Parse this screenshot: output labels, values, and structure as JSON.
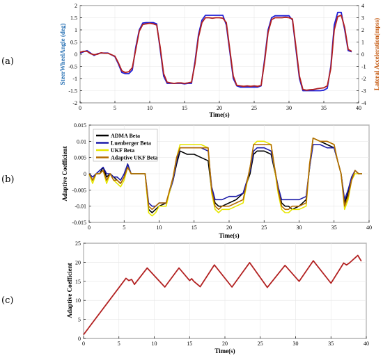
{
  "panel_labels": [
    "(a)",
    "(b)",
    "(c)"
  ],
  "chart_data": [
    {
      "type": "line",
      "xlabel": "Time(s)",
      "ylabel": "SteerWheelAngle (deg)",
      "y2label": "Lateral Acceleration(mpss)",
      "xlim": [
        0,
        40
      ],
      "ylim": [
        -2,
        2
      ],
      "y2lim": [
        -4,
        4
      ],
      "xticks": [
        0,
        5,
        10,
        15,
        20,
        25,
        30,
        35,
        40
      ],
      "yticks": [
        -2,
        -1.5,
        -1,
        -0.5,
        0,
        0.5,
        1,
        1.5,
        2
      ],
      "y2ticks": [
        -4,
        -3,
        -2,
        -1,
        0,
        1,
        2,
        3,
        4
      ],
      "colors": {
        "left_axis": "#2e75b6",
        "right_axis": "#c55a11"
      },
      "series": [
        {
          "color": "#1f1fd6",
          "axis": "left",
          "x": [
            0,
            0.5,
            1,
            1.5,
            2,
            2.5,
            3,
            3.5,
            4,
            5,
            5.5,
            6,
            6.5,
            7,
            7.5,
            8,
            8.5,
            9,
            9.5,
            10,
            10.5,
            11,
            11.5,
            12,
            12.5,
            13,
            13.5,
            14,
            14.5,
            15,
            15.5,
            16,
            16.5,
            17,
            17.5,
            18,
            18.5,
            19,
            19.5,
            20,
            20.5,
            21,
            21.5,
            22,
            22.5,
            23,
            23.5,
            24,
            24.5,
            25,
            25.5,
            26,
            26.5,
            27,
            27.5,
            28,
            28.5,
            29,
            29.5,
            30,
            30.5,
            31,
            31.5,
            32,
            32.5,
            33,
            33.5,
            34,
            34.5,
            35,
            35.5,
            36,
            36.5,
            37,
            37.5,
            38,
            38.5,
            39
          ],
          "y": [
            0.05,
            0.1,
            0.15,
            0.05,
            -0.05,
            0.02,
            0.05,
            0.05,
            0.05,
            -0.1,
            -0.4,
            -0.75,
            -0.8,
            -0.8,
            -0.65,
            0.3,
            1.0,
            1.28,
            1.3,
            1.3,
            1.3,
            1.25,
            0.2,
            -0.9,
            -1.2,
            -1.2,
            -1.2,
            -1.2,
            -1.2,
            -1.22,
            -1.2,
            -1.2,
            -0.3,
            0.8,
            1.4,
            1.6,
            1.6,
            1.6,
            1.6,
            1.6,
            1.6,
            1.2,
            0.1,
            -1.0,
            -1.3,
            -1.35,
            -1.35,
            -1.35,
            -1.35,
            -1.35,
            -1.35,
            -1.3,
            -0.2,
            1.0,
            1.5,
            1.58,
            1.58,
            1.58,
            1.58,
            1.58,
            1.4,
            0.2,
            -1.0,
            -1.5,
            -1.5,
            -1.5,
            -1.5,
            -1.5,
            -1.5,
            -1.48,
            -1.4,
            -0.5,
            1.2,
            1.72,
            1.72,
            1.0,
            0.15,
            0.1
          ]
        },
        {
          "color": "#b22020",
          "axis": "left",
          "x": [
            0,
            0.5,
            1,
            1.5,
            2,
            2.5,
            3,
            3.5,
            4,
            5,
            5.5,
            6,
            6.5,
            7,
            7.5,
            8,
            8.5,
            9,
            9.5,
            10,
            10.5,
            11,
            11.5,
            12,
            12.5,
            13,
            13.5,
            14,
            14.5,
            15,
            15.5,
            16,
            16.5,
            17,
            17.5,
            18,
            18.5,
            19,
            19.5,
            20,
            20.5,
            21,
            21.5,
            22,
            22.5,
            23,
            23.5,
            24,
            24.5,
            25,
            25.5,
            26,
            26.5,
            27,
            27.5,
            28,
            28.5,
            29,
            29.5,
            30,
            30.5,
            31,
            31.5,
            32,
            32.5,
            33,
            33.5,
            34,
            34.5,
            35,
            35.5,
            36,
            36.5,
            37,
            37.5,
            38,
            38.5,
            39
          ],
          "y": [
            0.08,
            0.12,
            0.12,
            0.02,
            -0.02,
            0.0,
            0.06,
            0.04,
            0.04,
            -0.08,
            -0.35,
            -0.68,
            -0.75,
            -0.72,
            -0.55,
            0.2,
            0.95,
            1.22,
            1.25,
            1.27,
            1.25,
            1.2,
            0.3,
            -0.8,
            -1.15,
            -1.18,
            -1.2,
            -1.18,
            -1.18,
            -1.2,
            -1.18,
            -1.15,
            -0.4,
            0.7,
            1.3,
            1.5,
            1.5,
            1.48,
            1.5,
            1.5,
            1.48,
            1.3,
            0.2,
            -0.9,
            -1.28,
            -1.3,
            -1.32,
            -1.3,
            -1.32,
            -1.3,
            -1.32,
            -1.28,
            -0.3,
            0.9,
            1.42,
            1.5,
            1.5,
            1.5,
            1.52,
            1.5,
            1.45,
            0.3,
            -0.9,
            -1.45,
            -1.48,
            -1.46,
            -1.45,
            -1.42,
            -1.4,
            -1.38,
            -1.3,
            -0.6,
            1.0,
            1.55,
            1.6,
            1.1,
            0.2,
            0.12
          ]
        }
      ]
    },
    {
      "type": "line",
      "xlabel": "Time(s)",
      "ylabel": "Adaptive Coefficient",
      "xlim": [
        0,
        40
      ],
      "ylim": [
        -0.015,
        0.015
      ],
      "xticks": [
        0,
        5,
        10,
        15,
        20,
        25,
        30,
        35,
        40
      ],
      "yticks": [
        -0.015,
        -0.01,
        -0.005,
        0,
        0.005,
        0.01,
        0.015
      ],
      "legend_position": "top-left",
      "series": [
        {
          "name": "ADMA Beta",
          "color": "#000000",
          "x": [
            0,
            0.5,
            1,
            1.5,
            2,
            2.5,
            3,
            3.5,
            4,
            4.5,
            5,
            5.5,
            6,
            7,
            8,
            8.5,
            9,
            9.5,
            10,
            11,
            12,
            12.5,
            13,
            14,
            15,
            16,
            17,
            17.5,
            18,
            18.5,
            19,
            20,
            21,
            22,
            23,
            23.5,
            24,
            25,
            26,
            27,
            27.5,
            28,
            28.5,
            29,
            30,
            31,
            31.5,
            32,
            33,
            34,
            35,
            35.5,
            36,
            36.5,
            37,
            37.5,
            38,
            38.5,
            39
          ],
          "y": [
            0.0,
            -0.002,
            0.0,
            0.0,
            0.002,
            -0.001,
            0.0,
            -0.001,
            -0.002,
            -0.003,
            -0.001,
            0.003,
            0.0,
            0.0,
            0.0,
            -0.011,
            -0.012,
            -0.011,
            -0.01,
            -0.009,
            -0.002,
            0.003,
            0.007,
            0.006,
            0.006,
            0.005,
            0.004,
            -0.005,
            -0.009,
            -0.01,
            -0.01,
            -0.009,
            -0.008,
            -0.006,
            0.0,
            0.006,
            0.007,
            0.007,
            0.006,
            -0.004,
            -0.009,
            -0.01,
            -0.01,
            -0.011,
            -0.01,
            -0.008,
            0.002,
            0.011,
            0.01,
            0.009,
            0.008,
            0.004,
            0.0,
            -0.009,
            -0.006,
            -0.002,
            0.001,
            0.0,
            0.0
          ]
        },
        {
          "name": "Luenberger Beta",
          "color": "#1a1aa8",
          "x": [
            0,
            0.5,
            1,
            1.5,
            2,
            2.5,
            3,
            3.5,
            4,
            4.5,
            5,
            5.5,
            6,
            7,
            8,
            8.5,
            9,
            9.5,
            10,
            11,
            12,
            12.5,
            13,
            14,
            15,
            16,
            17,
            17.5,
            18,
            18.5,
            19,
            20,
            21,
            22,
            23,
            23.5,
            24,
            25,
            26,
            27,
            27.5,
            28,
            28.5,
            29,
            30,
            31,
            31.5,
            32,
            33,
            34,
            35,
            35.5,
            36,
            36.5,
            37,
            37.5,
            38,
            38.5,
            39
          ],
          "y": [
            0.0,
            -0.001,
            0.0,
            0.001,
            0.002,
            0.0,
            0.0,
            -0.001,
            -0.001,
            -0.002,
            0.0,
            0.003,
            0.0,
            0.0,
            0.0,
            -0.009,
            -0.01,
            -0.01,
            -0.009,
            -0.009,
            -0.002,
            0.004,
            0.008,
            0.008,
            0.008,
            0.008,
            0.007,
            -0.004,
            -0.008,
            -0.008,
            -0.008,
            -0.007,
            -0.007,
            -0.006,
            0.001,
            0.007,
            0.008,
            0.008,
            0.007,
            -0.004,
            -0.008,
            -0.008,
            -0.008,
            -0.008,
            -0.008,
            -0.007,
            0.002,
            0.009,
            0.009,
            0.008,
            0.008,
            0.004,
            0.0,
            -0.008,
            -0.005,
            -0.001,
            0.001,
            0.0,
            0.0
          ]
        },
        {
          "name": "UKF Beta",
          "color": "#e6e600",
          "x": [
            0,
            0.5,
            1,
            1.5,
            2,
            2.5,
            3,
            3.5,
            4,
            4.5,
            5,
            5.5,
            6,
            7,
            8,
            8.5,
            9,
            9.5,
            10,
            11,
            12,
            12.5,
            13,
            14,
            15,
            16,
            17,
            17.5,
            18,
            18.5,
            19,
            20,
            21,
            22,
            23,
            23.5,
            24,
            25,
            26,
            27,
            27.5,
            28,
            28.5,
            29,
            30,
            31,
            31.5,
            32,
            33,
            34,
            35,
            35.5,
            36,
            36.5,
            37,
            37.5,
            38,
            38.5,
            39
          ],
          "y": [
            0.0,
            -0.003,
            0.0,
            0.0,
            0.001,
            -0.003,
            0.0,
            -0.002,
            -0.003,
            -0.004,
            -0.002,
            0.002,
            0.0,
            0.0,
            0.0,
            -0.012,
            -0.013,
            -0.012,
            -0.01,
            -0.01,
            -0.001,
            0.005,
            0.009,
            0.009,
            0.009,
            0.009,
            0.008,
            -0.006,
            -0.011,
            -0.012,
            -0.011,
            -0.011,
            -0.01,
            -0.009,
            0.002,
            0.009,
            0.01,
            0.01,
            0.009,
            -0.006,
            -0.011,
            -0.012,
            -0.012,
            -0.011,
            -0.011,
            -0.01,
            0.003,
            0.011,
            0.01,
            0.01,
            0.009,
            0.004,
            0.0,
            -0.011,
            -0.008,
            -0.002,
            0.0,
            0.0,
            0.0
          ]
        },
        {
          "name": "Adaptive UKF Beta",
          "color": "#b36b00",
          "x": [
            0,
            0.5,
            1,
            1.5,
            2,
            2.5,
            3,
            3.5,
            4,
            4.5,
            5,
            5.5,
            6,
            7,
            8,
            8.5,
            9,
            9.5,
            10,
            11,
            12,
            12.5,
            13,
            14,
            15,
            16,
            17,
            17.5,
            18,
            18.5,
            19,
            20,
            21,
            22,
            23,
            23.5,
            24,
            25,
            26,
            27,
            27.5,
            28,
            28.5,
            29,
            30,
            31,
            31.5,
            32,
            33,
            34,
            35,
            35.5,
            36,
            36.5,
            37,
            37.5,
            38,
            38.5,
            39
          ],
          "y": [
            0.0,
            -0.002,
            0.0,
            0.0,
            0.001,
            -0.002,
            0.0,
            -0.002,
            -0.002,
            -0.003,
            -0.001,
            0.002,
            0.0,
            0.0,
            0.0,
            -0.01,
            -0.011,
            -0.01,
            -0.009,
            -0.009,
            -0.001,
            0.005,
            0.008,
            0.008,
            0.008,
            0.008,
            0.008,
            -0.005,
            -0.01,
            -0.011,
            -0.01,
            -0.01,
            -0.009,
            -0.008,
            0.002,
            0.009,
            0.009,
            0.009,
            0.009,
            -0.005,
            -0.01,
            -0.011,
            -0.011,
            -0.01,
            -0.01,
            -0.009,
            0.003,
            0.011,
            0.01,
            0.01,
            0.009,
            0.004,
            0.0,
            -0.01,
            -0.007,
            -0.002,
            0.001,
            0.0,
            0.0
          ]
        }
      ]
    },
    {
      "type": "line",
      "xlabel": "Time(s)",
      "ylabel": "Adaptive Coefficient",
      "xlim": [
        0,
        40
      ],
      "ylim": [
        0,
        25
      ],
      "xticks": [
        0,
        5,
        10,
        15,
        20,
        25,
        30,
        35,
        40
      ],
      "yticks": [
        0,
        5,
        10,
        15,
        20,
        25
      ],
      "series": [
        {
          "color": "#b22020",
          "x": [
            0,
            6,
            6.4,
            6.8,
            7.2,
            9,
            11.5,
            13.5,
            15,
            15.3,
            15.6,
            16.5,
            18.5,
            21,
            23.5,
            26,
            28.5,
            30.5,
            32.5,
            35,
            36.8,
            37.2,
            37.6,
            38.8,
            39.3
          ],
          "y": [
            1,
            15.8,
            15.2,
            15.5,
            14.2,
            18.5,
            13.5,
            18.5,
            15.2,
            15.7,
            15.0,
            13.6,
            19.3,
            13.5,
            19.9,
            13.4,
            19.2,
            15.0,
            20.4,
            14.5,
            19.8,
            19.3,
            19.8,
            21.8,
            20.3
          ]
        }
      ]
    }
  ]
}
